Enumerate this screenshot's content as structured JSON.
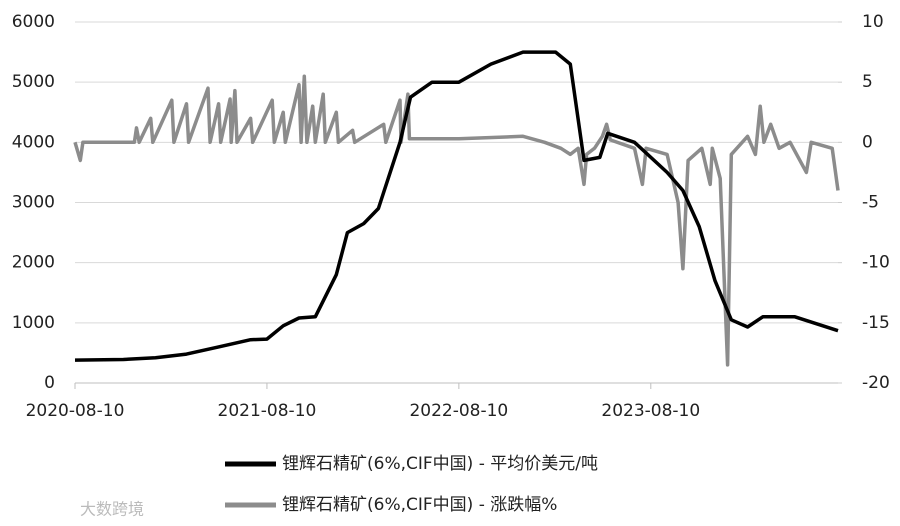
{
  "chart_data": {
    "type": "line",
    "xlim": [
      "2020-08-10",
      "2024-07-31"
    ],
    "xticks": [
      "2020-08-10",
      "2021-08-10",
      "2022-08-10",
      "2023-08-10"
    ],
    "ylim": [
      0,
      6000
    ],
    "yticks": [
      0,
      1000,
      2000,
      3000,
      4000,
      5000,
      6000
    ],
    "y2lim": [
      -20,
      10
    ],
    "y2ticks": [
      10,
      5,
      0,
      -5,
      -10,
      -15,
      -20
    ],
    "grid": true,
    "legend": "bottom",
    "watermark": "大数跨境",
    "series": [
      {
        "name": "锂辉石精矿(6%,CIF中国) - 平均价美元/吨",
        "color": "#000000",
        "x": [
          "2020-08-10",
          "2020-11-10",
          "2021-01-10",
          "2021-03-10",
          "2021-05-10",
          "2021-07-10",
          "2021-08-10",
          "2021-09-10",
          "2021-10-10",
          "2021-11-10",
          "2021-12-20",
          "2022-01-10",
          "2022-02-10",
          "2022-03-10",
          "2022-04-20",
          "2022-05-10",
          "2022-06-20",
          "2022-08-10",
          "2022-10-10",
          "2022-12-10",
          "2023-02-10",
          "2023-03-10",
          "2023-04-05",
          "2023-05-05",
          "2023-05-20",
          "2023-07-10",
          "2023-09-10",
          "2023-10-10",
          "2023-11-10",
          "2023-12-10",
          "2024-01-10",
          "2024-02-10",
          "2024-03-10",
          "2024-05-10",
          "2024-07-31"
        ],
        "values": [
          380,
          390,
          420,
          480,
          600,
          720,
          730,
          950,
          1080,
          1100,
          1800,
          2500,
          2650,
          2900,
          4000,
          4750,
          5000,
          5000,
          5300,
          5500,
          5500,
          5300,
          3700,
          3750,
          4150,
          4000,
          3500,
          3200,
          2600,
          1700,
          1050,
          930,
          1100,
          1100,
          870
        ]
      },
      {
        "name": "锂辉石精矿(6%,CIF中国) - 涨跌幅%",
        "color": "#8c8c8c",
        "axis": "y2",
        "x": [
          "2020-08-10",
          "2020-08-20",
          "2020-08-25",
          "2020-12-01",
          "2020-12-05",
          "2020-12-10",
          "2021-01-01",
          "2021-01-05",
          "2021-02-10",
          "2021-02-14",
          "2021-03-10",
          "2021-03-14",
          "2021-04-20",
          "2021-04-24",
          "2021-05-10",
          "2021-05-14",
          "2021-06-01",
          "2021-06-03",
          "2021-06-10",
          "2021-06-14",
          "2021-07-10",
          "2021-07-14",
          "2021-08-20",
          "2021-08-24",
          "2021-09-10",
          "2021-09-14",
          "2021-10-10",
          "2021-10-14",
          "2021-10-20",
          "2021-10-25",
          "2021-11-05",
          "2021-11-10",
          "2021-11-25",
          "2021-11-29",
          "2021-12-20",
          "2021-12-24",
          "2022-01-20",
          "2022-01-24",
          "2022-03-20",
          "2022-03-24",
          "2022-04-20",
          "2022-04-22",
          "2022-05-05",
          "2022-05-08",
          "2022-08-10",
          "2022-12-10",
          "2023-01-20",
          "2023-02-20",
          "2023-03-10",
          "2023-03-25",
          "2023-04-05",
          "2023-04-10",
          "2023-04-25",
          "2023-05-10",
          "2023-05-18",
          "2023-05-25",
          "2023-07-10",
          "2023-07-25",
          "2023-08-01",
          "2023-09-10",
          "2023-10-01",
          "2023-10-10",
          "2023-10-20",
          "2023-11-15",
          "2023-12-01",
          "2023-12-05",
          "2023-12-20",
          "2024-01-03",
          "2024-01-10",
          "2024-02-10",
          "2024-02-25",
          "2024-03-05",
          "2024-03-12",
          "2024-03-25",
          "2024-04-10",
          "2024-05-01",
          "2024-06-01",
          "2024-06-10",
          "2024-07-20",
          "2024-07-31"
        ],
        "values": [
          0,
          -1.5,
          0,
          0,
          1.2,
          0,
          2,
          0,
          3.5,
          0,
          3.2,
          0,
          4.5,
          0,
          3.2,
          0,
          3.6,
          0,
          4.3,
          0,
          2,
          0,
          3.5,
          0,
          2.5,
          0,
          4.8,
          0,
          5.5,
          0,
          3,
          0,
          4,
          0,
          2.5,
          0,
          1,
          0,
          1.5,
          0,
          3.5,
          0,
          4,
          0.3,
          0.3,
          0.5,
          0,
          -0.5,
          -1,
          -0.5,
          -3.5,
          -1,
          -0.5,
          0.5,
          1.5,
          0.2,
          -0.5,
          -3.5,
          -0.5,
          -1,
          -5,
          -10.5,
          -1.5,
          -0.5,
          -3.5,
          -0.5,
          -3,
          -18.5,
          -1,
          0.5,
          -1,
          3,
          0,
          1.5,
          -0.5,
          0,
          -2.5,
          0,
          -0.5,
          -4
        ]
      }
    ]
  }
}
